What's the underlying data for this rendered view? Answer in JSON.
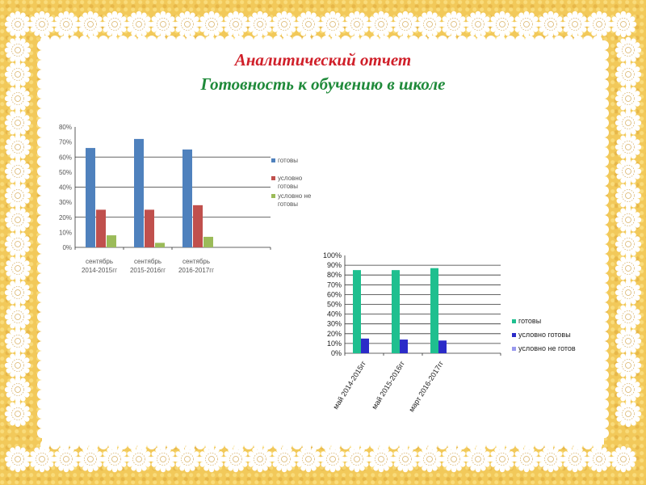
{
  "slide": {
    "title": "Аналитический отчет",
    "subtitle": "Готовность к обучению в школе",
    "colors": {
      "frame": "#f2c95a",
      "lace": "#ffffff",
      "title": "#d0202a",
      "subtitle": "#1f8a3a"
    }
  },
  "chart_data": [
    {
      "type": "bar",
      "categories": [
        "сентябрь 2014-2015гг",
        "сентябрь 2015-2016гг",
        "сентябрь 2016-2017гг"
      ],
      "series": [
        {
          "name": "готовы",
          "values": [
            66,
            72,
            65
          ],
          "color": "#4f81bd"
        },
        {
          "name": "условно готовы",
          "values": [
            25,
            25,
            28
          ],
          "color": "#c0504d"
        },
        {
          "name": "условно не готовы",
          "values": [
            8,
            3,
            7
          ],
          "color": "#9bbb59"
        }
      ],
      "yticks": [
        "0%",
        "10%",
        "20%",
        "30%",
        "40%",
        "50%",
        "60%",
        "70%",
        "80%"
      ],
      "ylim": [
        0,
        80
      ],
      "grid": true,
      "legend": "right"
    },
    {
      "type": "bar",
      "categories": [
        "май 2014-2015гг",
        "май 2015-2016гг",
        "март 2016-2017гг"
      ],
      "series": [
        {
          "name": "готовы",
          "values": [
            85,
            85,
            87
          ],
          "color": "#1fbf8f"
        },
        {
          "name": "условно готовы",
          "values": [
            15,
            14,
            13
          ],
          "color": "#2b2bc8"
        },
        {
          "name": "условно не готов",
          "values": [
            0,
            0,
            0
          ],
          "color": "#9999ee"
        }
      ],
      "yticks": [
        "0%",
        "10%",
        "20%",
        "30%",
        "40%",
        "50%",
        "60%",
        "70%",
        "80%",
        "90%",
        "100%"
      ],
      "ylim": [
        0,
        100
      ],
      "grid": true,
      "legend": "right"
    }
  ]
}
